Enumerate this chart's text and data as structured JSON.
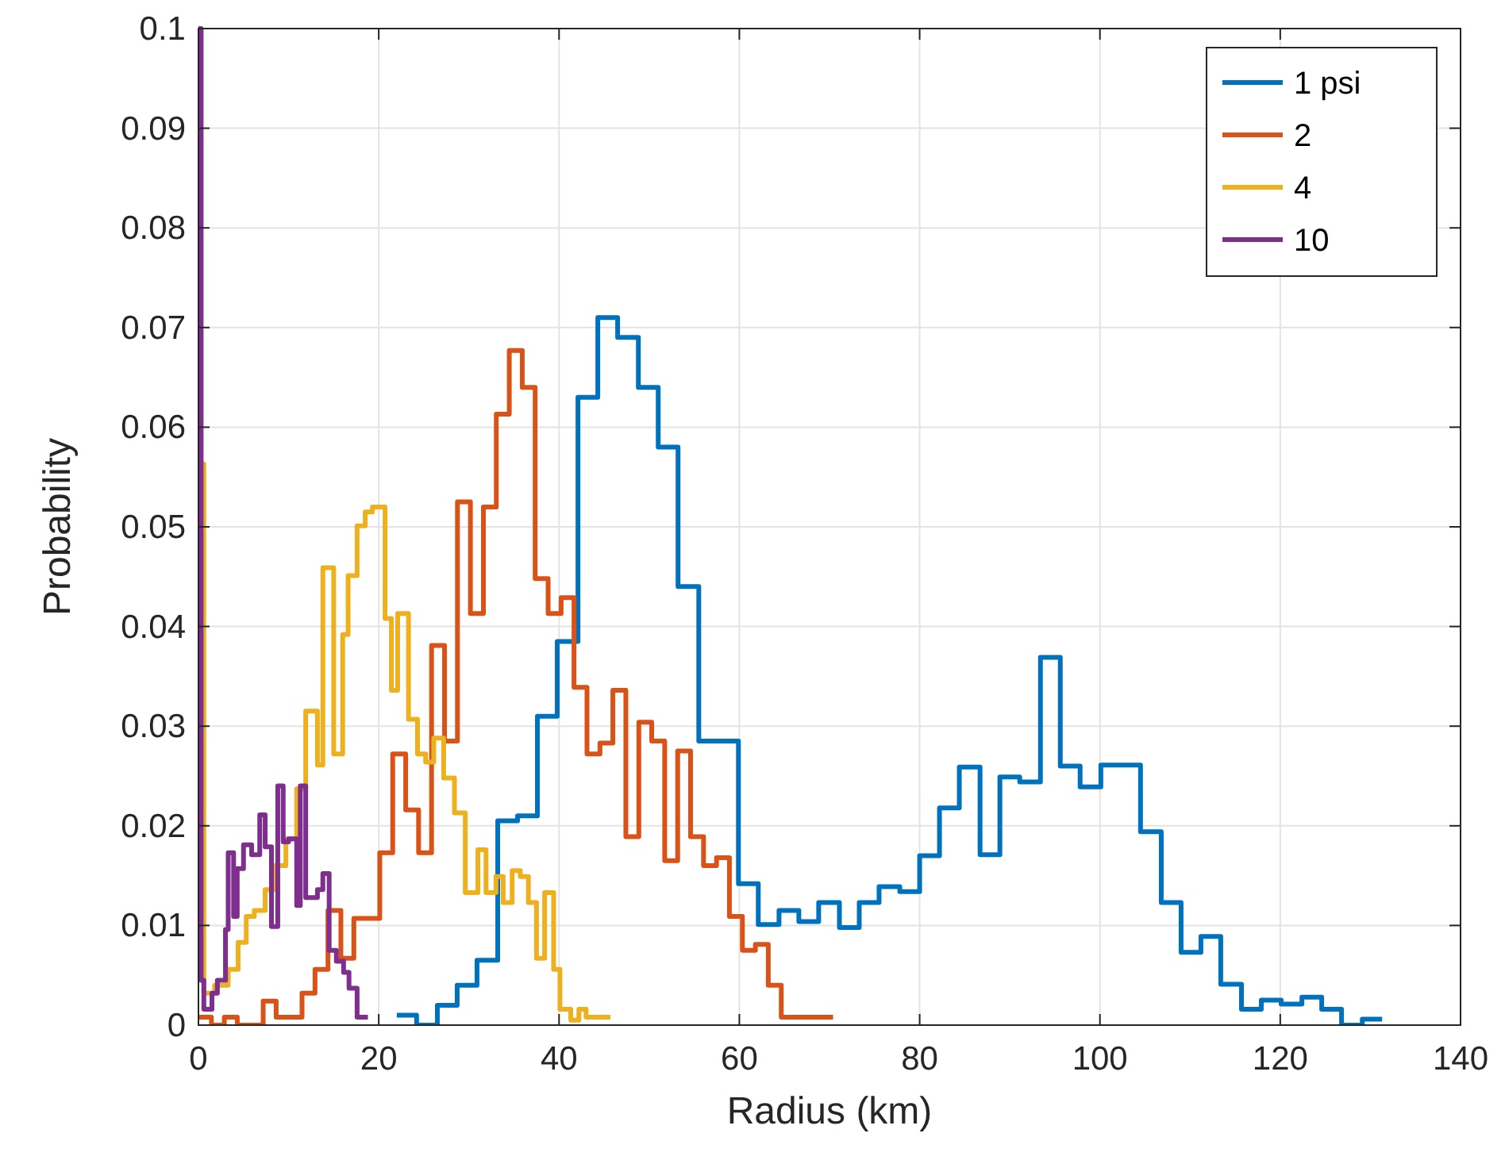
{
  "chart_data": {
    "type": "step",
    "xlabel": "Radius (km)",
    "ylabel": "Probability",
    "xlim": [
      0,
      140
    ],
    "ylim": [
      0,
      0.1
    ],
    "xticks": [
      0,
      20,
      40,
      60,
      80,
      100,
      120,
      140
    ],
    "yticks": [
      0,
      0.01,
      0.02,
      0.03,
      0.04,
      0.05,
      0.06,
      0.07,
      0.08,
      0.09,
      0.1
    ],
    "grid": true,
    "legend": "top right",
    "series": [
      {
        "name": "1 psi",
        "color": "#0072bd",
        "x": [
          22.0,
          24.2,
          26.5,
          28.7,
          30.9,
          33.2,
          35.4,
          37.6,
          39.8,
          42.1,
          44.3,
          46.5,
          48.8,
          51.0,
          53.2,
          55.5,
          57.7,
          59.9,
          62.1,
          64.4,
          66.6,
          68.8,
          71.1,
          73.3,
          75.5,
          77.8,
          80.0,
          82.2,
          84.4,
          86.7,
          88.9,
          91.1,
          93.4,
          95.6,
          97.8,
          100.1,
          102.3,
          104.5,
          106.8,
          109.0,
          111.2,
          113.4,
          115.7,
          117.9,
          120.1,
          122.4,
          124.6,
          126.8,
          129.1,
          131.3
        ],
        "values": [
          0.001,
          0,
          0.002,
          0.004,
          0.0065,
          0.0205,
          0.021,
          0.031,
          0.0385,
          0.063,
          0.071,
          0.069,
          0.064,
          0.058,
          0.044,
          0.0285,
          0.0285,
          0.0142,
          0.0101,
          0.0115,
          0.0104,
          0.0123,
          0.0098,
          0.0123,
          0.0139,
          0.0134,
          0.017,
          0.0218,
          0.0259,
          0.0171,
          0.0249,
          0.0244,
          0.0369,
          0.026,
          0.0239,
          0.0261,
          0.0261,
          0.0194,
          0.0123,
          0.0073,
          0.0089,
          0.0041,
          0.0016,
          0.0025,
          0.0021,
          0.0028,
          0.0016,
          0,
          0.0006,
          0.0006
        ]
      },
      {
        "name": "2",
        "color": "#d95319",
        "x": [
          0,
          1.44,
          2.87,
          4.31,
          5.75,
          7.18,
          8.62,
          10.06,
          11.49,
          12.93,
          14.37,
          15.8,
          17.24,
          18.68,
          20.11,
          21.55,
          22.99,
          24.42,
          25.86,
          27.3,
          28.73,
          30.17,
          31.61,
          33.04,
          34.48,
          35.92,
          37.35,
          38.79,
          40.23,
          41.66,
          43.1,
          44.54,
          45.97,
          47.41,
          48.85,
          50.28,
          51.72,
          53.16,
          54.59,
          56.03,
          57.47,
          58.9,
          60.34,
          61.78,
          63.21,
          64.65,
          66.09,
          67.52,
          68.96,
          70.4
        ],
        "values": [
          0.0008,
          0,
          0.0008,
          0,
          0,
          0.0024,
          0.0008,
          0.0008,
          0.0032,
          0.0056,
          0.0115,
          0.0067,
          0.0107,
          0.0107,
          0.0173,
          0.0272,
          0.0216,
          0.0173,
          0.0381,
          0.0285,
          0.0525,
          0.0413,
          0.052,
          0.0613,
          0.0677,
          0.064,
          0.0448,
          0.0413,
          0.0429,
          0.0339,
          0.0272,
          0.0283,
          0.0336,
          0.0189,
          0.0304,
          0.0285,
          0.0165,
          0.0275,
          0.0189,
          0.016,
          0.0168,
          0.0109,
          0.0075,
          0.0081,
          0.004,
          0.0008,
          0.0008,
          0.0008,
          0.0008,
          0.0008
        ]
      },
      {
        "name": "4",
        "color": "#edb120",
        "x": [
          0,
          0.6,
          1.8,
          3.3,
          4.4,
          5.3,
          6.2,
          7.4,
          8.4,
          9.7,
          10.9,
          11.9,
          13.2,
          13.8,
          15.0,
          16.0,
          16.6,
          17.6,
          18.5,
          19.3,
          20.7,
          21.4,
          22.1,
          23.3,
          24.3,
          25.2,
          26.1,
          27.2,
          28.4,
          29.6,
          31.0,
          31.9,
          33.0,
          33.8,
          34.8,
          35.7,
          36.6,
          37.5,
          38.4,
          39.4,
          40.1,
          41.3,
          42.2,
          43.0,
          45.7
        ],
        "values": [
          0.0563,
          0.0032,
          0.004,
          0.0056,
          0.0083,
          0.0109,
          0.0115,
          0.0136,
          0.016,
          0.0187,
          0.0237,
          0.0315,
          0.0261,
          0.0459,
          0.0272,
          0.0392,
          0.0451,
          0.0501,
          0.0515,
          0.052,
          0.0408,
          0.0336,
          0.0413,
          0.0307,
          0.0272,
          0.0264,
          0.0288,
          0.0248,
          0.0213,
          0.0133,
          0.0176,
          0.0133,
          0.0149,
          0.0123,
          0.0155,
          0.0149,
          0.0123,
          0.0067,
          0.0133,
          0.0056,
          0.0016,
          0.0005,
          0.0016,
          0.0008,
          0.0008
        ]
      },
      {
        "name": "10",
        "color": "#7e2f8e",
        "x": [
          0,
          0.3,
          0.6,
          1.5,
          2.1,
          3.0,
          3.3,
          3.9,
          4.3,
          5.0,
          5.9,
          6.8,
          7.4,
          8.1,
          8.8,
          9.4,
          10.0,
          10.9,
          11.3,
          11.9,
          13.2,
          13.8,
          14.5,
          15.3,
          16.1,
          16.7,
          17.6,
          18.8
        ],
        "values": [
          0.1,
          0.0045,
          0.0016,
          0.0032,
          0.0045,
          0.0096,
          0.0173,
          0.0109,
          0.0157,
          0.0181,
          0.0171,
          0.0211,
          0.0179,
          0.0099,
          0.024,
          0.0184,
          0.0187,
          0.012,
          0.024,
          0.0128,
          0.0136,
          0.0152,
          0.0075,
          0.0064,
          0.0053,
          0.0037,
          0.0008,
          0.0008
        ]
      }
    ]
  }
}
